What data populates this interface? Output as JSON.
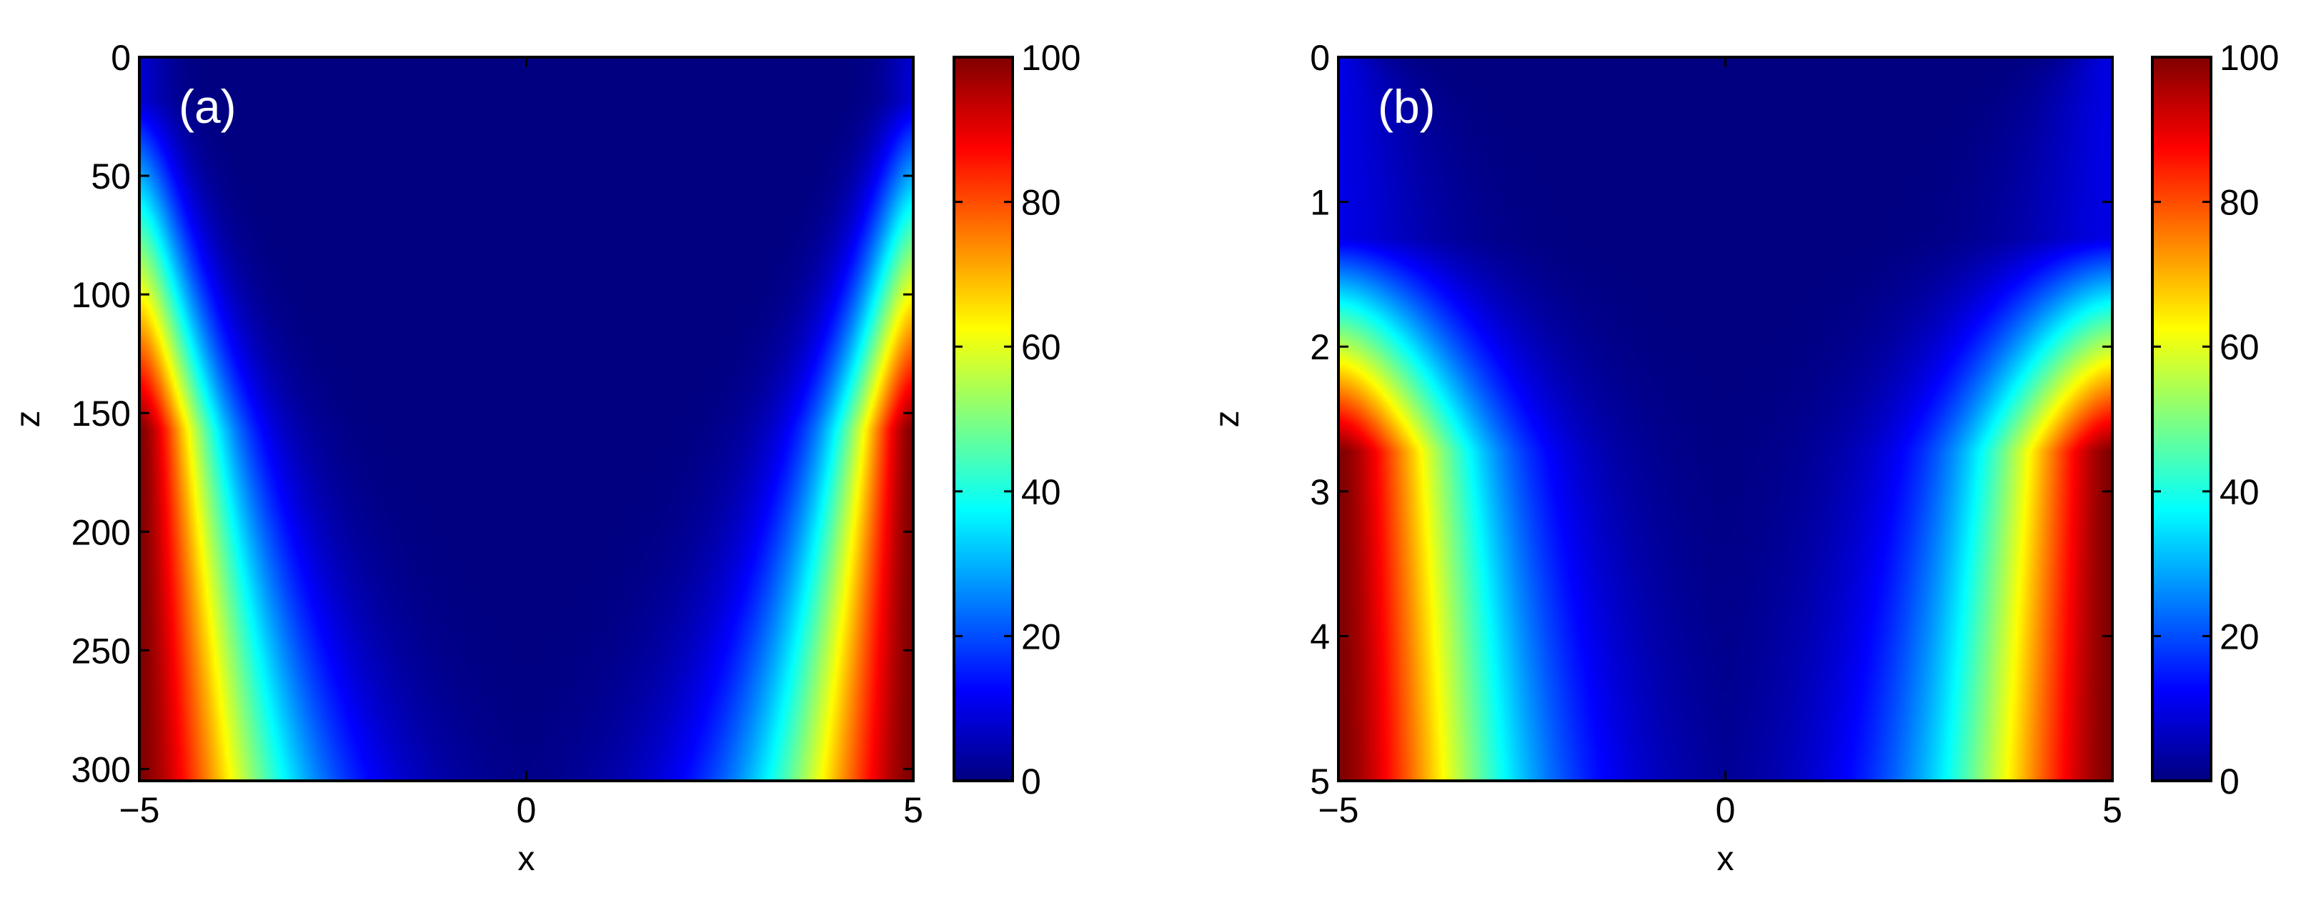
{
  "chart_data": [
    {
      "type": "heatmap",
      "panel_label": "(a)",
      "xlabel": "x",
      "ylabel": "z",
      "xlim": [
        -5,
        5
      ],
      "ylim": [
        0,
        305
      ],
      "y_reversed": true,
      "x_ticks": [
        -5,
        0,
        5
      ],
      "x_tick_labels": [
        "−5",
        "0",
        "5"
      ],
      "y_ticks": [
        0,
        50,
        100,
        150,
        200,
        250,
        300
      ],
      "y_tick_labels": [
        "0",
        "50",
        "100",
        "150",
        "200",
        "250",
        "300"
      ],
      "colormap": "jet",
      "color_range": [
        0,
        100
      ],
      "colorbar_ticks": [
        0,
        20,
        40,
        60,
        80,
        100
      ],
      "colorbar_tick_labels": [
        "0",
        "20",
        "40",
        "60",
        "80",
        "100"
      ],
      "field": {
        "edge_min": 8,
        "edge_max": 100,
        "bowl": 1.0,
        "z_onset": 0.06,
        "growth": 2.2,
        "curve": 1.3
      }
    },
    {
      "type": "heatmap",
      "panel_label": "(b)",
      "xlabel": "x",
      "ylabel": "z",
      "xlim": [
        -5,
        5
      ],
      "ylim": [
        0,
        5
      ],
      "y_reversed": true,
      "x_ticks": [
        -5,
        0,
        5
      ],
      "x_tick_labels": [
        "−5",
        "0",
        "5"
      ],
      "y_ticks": [
        0,
        1,
        2,
        3,
        4,
        5
      ],
      "y_tick_labels": [
        "0",
        "1",
        "2",
        "3",
        "4",
        "5"
      ],
      "colormap": "jet",
      "color_range": [
        0,
        100
      ],
      "colorbar_ticks": [
        0,
        20,
        40,
        60,
        80,
        100
      ],
      "colorbar_tick_labels": [
        "0",
        "20",
        "40",
        "60",
        "80",
        "100"
      ],
      "field": {
        "edge_min": 10,
        "edge_max": 100,
        "bowl": 0.8,
        "z_onset": 0.25,
        "growth": 3.4,
        "curve": 0.5
      }
    }
  ]
}
